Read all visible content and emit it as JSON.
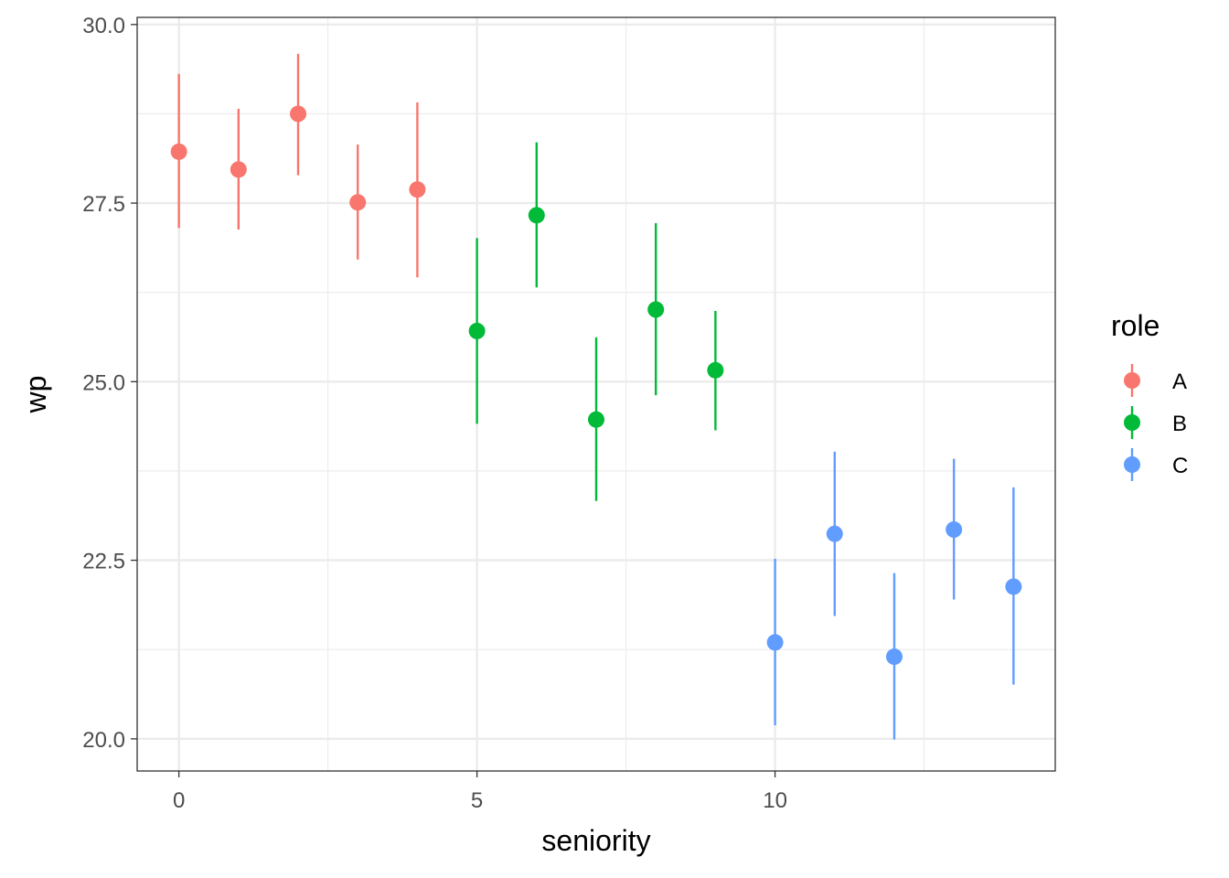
{
  "chart_data": {
    "type": "scatter",
    "subtype": "pointrange",
    "xlabel": "seniority",
    "ylabel": "wp",
    "xlim": [
      -0.7,
      14.7
    ],
    "ylim": [
      19.55,
      30.1
    ],
    "x_ticks": [
      0,
      5,
      10
    ],
    "x_tick_labels": [
      "0",
      "5",
      "10"
    ],
    "y_ticks": [
      20.0,
      22.5,
      25.0,
      27.5,
      30.0
    ],
    "y_tick_labels": [
      "20.0",
      "22.5",
      "25.0",
      "27.5",
      "30.0"
    ],
    "x_minor_ticks": [
      2.5,
      7.5,
      12.5
    ],
    "y_minor_ticks": [
      21.25,
      23.75,
      26.25,
      28.75
    ],
    "grid": true,
    "legend": {
      "title": "role",
      "position": "right"
    },
    "series": [
      {
        "name": "A",
        "color": "#F8766D",
        "points": [
          {
            "x": 0,
            "y": 28.22,
            "ymin": 27.15,
            "ymax": 29.31
          },
          {
            "x": 1,
            "y": 27.97,
            "ymin": 27.13,
            "ymax": 28.82
          },
          {
            "x": 2,
            "y": 28.75,
            "ymin": 27.89,
            "ymax": 29.59
          },
          {
            "x": 3,
            "y": 27.51,
            "ymin": 26.71,
            "ymax": 28.32
          },
          {
            "x": 4,
            "y": 27.69,
            "ymin": 26.46,
            "ymax": 28.91
          }
        ]
      },
      {
        "name": "B",
        "color": "#00BA38",
        "points": [
          {
            "x": 5,
            "y": 25.71,
            "ymin": 24.41,
            "ymax": 27.01
          },
          {
            "x": 6,
            "y": 27.33,
            "ymin": 26.32,
            "ymax": 28.35
          },
          {
            "x": 7,
            "y": 24.47,
            "ymin": 23.33,
            "ymax": 25.62
          },
          {
            "x": 8,
            "y": 26.01,
            "ymin": 24.81,
            "ymax": 27.22
          },
          {
            "x": 9,
            "y": 25.16,
            "ymin": 24.32,
            "ymax": 25.99
          }
        ]
      },
      {
        "name": "C",
        "color": "#619CFF",
        "points": [
          {
            "x": 10,
            "y": 21.35,
            "ymin": 20.19,
            "ymax": 22.52
          },
          {
            "x": 11,
            "y": 22.87,
            "ymin": 21.72,
            "ymax": 24.02
          },
          {
            "x": 12,
            "y": 21.15,
            "ymin": 19.99,
            "ymax": 22.32
          },
          {
            "x": 13,
            "y": 22.93,
            "ymin": 21.95,
            "ymax": 23.92
          },
          {
            "x": 14,
            "y": 22.13,
            "ymin": 20.76,
            "ymax": 23.52
          }
        ]
      }
    ]
  }
}
